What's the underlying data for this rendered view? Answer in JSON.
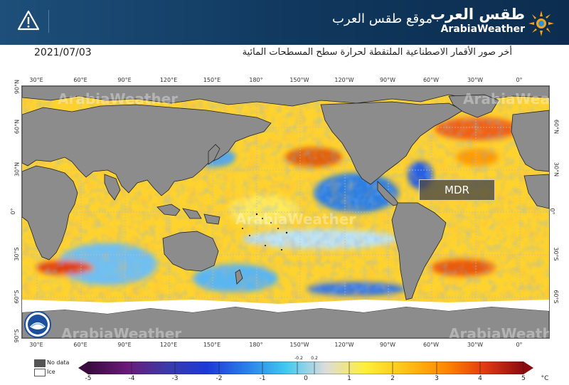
{
  "header": {
    "site_title": "موقع طقس العرب",
    "brand_arabic": "طقس العرب",
    "brand_english": "ArabiaWeather",
    "background": "#10375d"
  },
  "caption": {
    "date": "2021/07/03",
    "subtitle": "أخر صور الأقمار الاصطناعية الملتقطة لحرارة سطح المسطحات المائية"
  },
  "map": {
    "top_ticks": [
      "30°E",
      "60°E",
      "90°E",
      "120°E",
      "150°E",
      "180°",
      "150°W",
      "120°W",
      "90°W",
      "60°W",
      "30°W",
      "0°"
    ],
    "bottom_ticks": [
      "30°E",
      "60°E",
      "90°E",
      "120°E",
      "150°E",
      "180°",
      "150°W",
      "120°W",
      "90°W",
      "60°W",
      "30°W",
      "0°"
    ],
    "left_ticks": [
      "90°N",
      "60°N",
      "30°N",
      "0°",
      "30°S",
      "60°S",
      "90°S"
    ],
    "right_ticks": [
      "60°N",
      "30°N",
      "0°",
      "30°S",
      "60°S"
    ],
    "region_label": "MDR",
    "watermark": "ArabiaWeather",
    "land_color": "#8c8c8c",
    "ice_color": "#ffffff"
  },
  "legend": {
    "no_data": "No data",
    "ice": "Ice",
    "unit": "°C",
    "ticks": [
      "-5",
      "-4",
      "-3",
      "-2",
      "-1",
      "0",
      "1",
      "2",
      "3",
      "4",
      "5"
    ],
    "small_ticks": [
      "-0.2",
      "0.2"
    ]
  },
  "colorbar": {
    "colors": [
      "#3a0a40",
      "#6b1a7a",
      "#3b3ba8",
      "#1c39d6",
      "#2a7fe8",
      "#42c8f0",
      "#dcdcdc",
      "#ffef3a",
      "#ffc21a",
      "#ff8a00",
      "#e23b10",
      "#8a0b10"
    ]
  }
}
